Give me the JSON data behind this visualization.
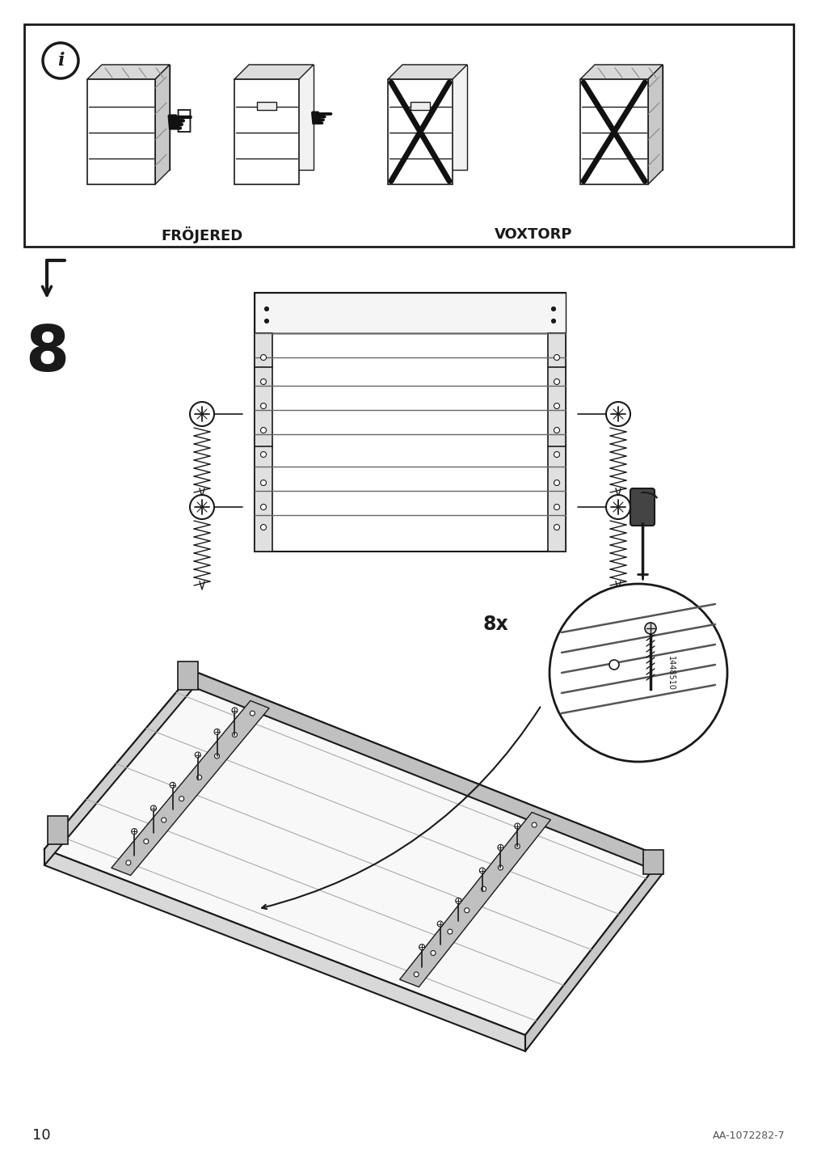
{
  "page_number": "10",
  "doc_code": "AA-1072282-7",
  "background_color": "#ffffff",
  "line_color": "#1a1a1a",
  "step_number": "8",
  "label_frojered": "FRÖJERED",
  "label_voxtorp": "VOXTORP",
  "screw_count_label": "8x",
  "part_number": "1448510"
}
